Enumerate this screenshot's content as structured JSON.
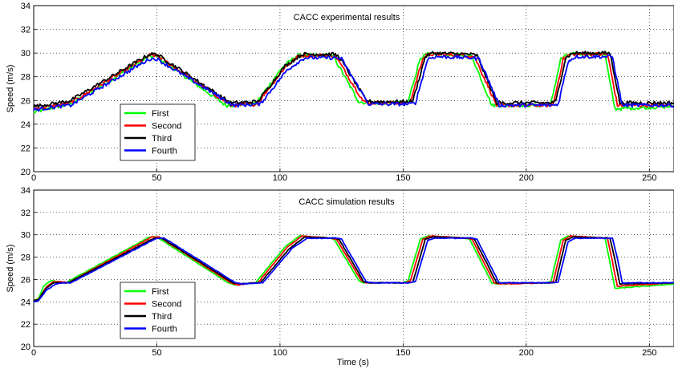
{
  "chart_data": [
    {
      "type": "line",
      "title": "CACC experimental results",
      "xlabel": "",
      "ylabel": "Speed (m/s)",
      "xlim": [
        0,
        260
      ],
      "ylim": [
        20,
        34
      ],
      "xticks": [
        0,
        50,
        100,
        150,
        200,
        250
      ],
      "yticks": [
        20,
        22,
        24,
        26,
        28,
        30,
        32,
        34
      ],
      "grid": true,
      "legend_position": "lower-left",
      "noise": 0.15,
      "series": [
        {
          "name": "First",
          "color": "#00ff00",
          "x": [
            0,
            10,
            15,
            47,
            50,
            78,
            80,
            89,
            90,
            101,
            107,
            120,
            122,
            132,
            135,
            150,
            152,
            157,
            160,
            175,
            178,
            186,
            188,
            208,
            210,
            214,
            217,
            232,
            234,
            236,
            260
          ],
          "y": [
            25.0,
            25.5,
            25.7,
            29.7,
            29.7,
            25.6,
            25.6,
            25.7,
            25.7,
            28.8,
            29.8,
            29.8,
            29.6,
            25.9,
            25.8,
            25.8,
            25.9,
            29.6,
            29.9,
            29.8,
            29.7,
            25.6,
            25.6,
            25.6,
            25.7,
            29.5,
            29.9,
            29.9,
            27.5,
            25.3,
            25.5
          ]
        },
        {
          "name": "Second",
          "color": "#ff0000",
          "x": [
            0,
            10,
            15,
            47,
            50,
            80,
            82,
            90,
            91,
            102,
            108,
            121,
            123,
            134,
            137,
            151,
            153,
            158,
            161,
            176,
            179,
            188,
            190,
            209,
            211,
            215,
            218,
            233,
            235,
            237,
            260
          ],
          "y": [
            25.3,
            25.6,
            25.8,
            29.8,
            29.8,
            25.6,
            25.6,
            25.7,
            25.8,
            28.8,
            29.8,
            29.8,
            29.6,
            25.9,
            25.8,
            25.8,
            25.9,
            29.6,
            29.9,
            29.8,
            29.7,
            25.6,
            25.6,
            25.6,
            25.7,
            29.5,
            29.9,
            29.9,
            27.8,
            25.6,
            25.6
          ]
        },
        {
          "name": "Third",
          "color": "#000000",
          "x": [
            0,
            10,
            15,
            47,
            50,
            80,
            82,
            90,
            91,
            102,
            109,
            122,
            124,
            135,
            137,
            152,
            154,
            159,
            162,
            177,
            180,
            188,
            190,
            210,
            212,
            216,
            219,
            234,
            236,
            238,
            260
          ],
          "y": [
            25.5,
            25.8,
            26.0,
            29.9,
            29.9,
            25.8,
            25.8,
            25.9,
            25.9,
            28.9,
            29.9,
            29.9,
            29.7,
            26.0,
            25.9,
            25.9,
            26.0,
            29.7,
            30.0,
            29.9,
            29.8,
            25.8,
            25.8,
            25.8,
            25.9,
            29.6,
            30.0,
            30.0,
            28.0,
            25.8,
            25.8
          ]
        },
        {
          "name": "Fourth",
          "color": "#0000ff",
          "x": [
            0,
            10,
            15,
            47,
            50,
            81,
            83,
            91,
            92,
            103,
            110,
            123,
            125,
            136,
            138,
            153,
            155,
            160,
            163,
            178,
            181,
            189,
            191,
            211,
            213,
            217,
            220,
            235,
            237,
            239,
            260
          ],
          "y": [
            25.2,
            25.5,
            25.6,
            29.5,
            29.5,
            25.6,
            25.6,
            25.7,
            25.7,
            28.6,
            29.6,
            29.6,
            29.5,
            25.7,
            25.7,
            25.7,
            25.8,
            29.5,
            29.7,
            29.6,
            29.5,
            25.6,
            25.6,
            25.6,
            25.7,
            29.3,
            29.7,
            29.7,
            27.6,
            25.6,
            25.6
          ]
        }
      ]
    },
    {
      "type": "line",
      "title": "CACC simulation results",
      "xlabel": "Time (s)",
      "ylabel": "Speed (m/s)",
      "xlim": [
        0,
        260
      ],
      "ylim": [
        20,
        34
      ],
      "xticks": [
        0,
        50,
        100,
        150,
        200,
        250
      ],
      "yticks": [
        20,
        22,
        24,
        26,
        28,
        30,
        32,
        34
      ],
      "grid": true,
      "legend_position": "lower-left",
      "noise": 0.03,
      "series": [
        {
          "name": "First",
          "color": "#00ff00",
          "x": [
            0,
            2,
            4,
            7,
            10,
            13,
            47,
            50,
            79,
            82,
            88,
            90,
            102,
            108,
            120,
            122,
            132,
            134,
            150,
            152,
            157,
            160,
            175,
            177,
            186,
            188,
            208,
            210,
            214,
            217,
            232,
            234,
            236,
            260
          ],
          "y": [
            24.1,
            24.3,
            25.4,
            25.9,
            25.8,
            25.7,
            29.8,
            29.8,
            25.7,
            25.5,
            25.7,
            25.7,
            28.9,
            29.9,
            29.7,
            29.6,
            25.9,
            25.7,
            25.7,
            25.9,
            29.6,
            29.9,
            29.7,
            29.6,
            25.7,
            25.6,
            25.7,
            25.8,
            29.5,
            29.9,
            29.7,
            27.5,
            25.2,
            25.6
          ]
        },
        {
          "name": "Second",
          "color": "#ff0000",
          "x": [
            0,
            2,
            5,
            8,
            11,
            14,
            48,
            51,
            80,
            83,
            89,
            91,
            103,
            109,
            121,
            123,
            133,
            135,
            151,
            153,
            158,
            161,
            176,
            178,
            187,
            189,
            209,
            211,
            215,
            218,
            233,
            235,
            237,
            260
          ],
          "y": [
            24.1,
            24.2,
            25.3,
            25.8,
            25.8,
            25.7,
            29.8,
            29.8,
            25.7,
            25.5,
            25.7,
            25.7,
            28.9,
            29.9,
            29.7,
            29.6,
            25.9,
            25.7,
            25.7,
            25.9,
            29.6,
            29.9,
            29.7,
            29.6,
            25.7,
            25.6,
            25.7,
            25.8,
            29.5,
            29.9,
            29.7,
            27.6,
            25.4,
            25.7
          ]
        },
        {
          "name": "Third",
          "color": "#000000",
          "x": [
            0,
            2,
            5,
            8,
            11,
            14,
            49,
            52,
            81,
            84,
            90,
            92,
            104,
            110,
            122,
            124,
            134,
            136,
            152,
            154,
            159,
            162,
            177,
            179,
            188,
            190,
            210,
            212,
            216,
            219,
            234,
            236,
            238,
            260
          ],
          "y": [
            24.1,
            24.2,
            25.2,
            25.7,
            25.7,
            25.7,
            29.7,
            29.7,
            25.7,
            25.6,
            25.7,
            25.7,
            28.8,
            29.8,
            29.7,
            29.6,
            25.8,
            25.7,
            25.7,
            25.8,
            29.6,
            29.8,
            29.7,
            29.6,
            25.7,
            25.7,
            25.7,
            25.8,
            29.5,
            29.8,
            29.7,
            27.8,
            25.6,
            25.7
          ]
        },
        {
          "name": "Fourth",
          "color": "#0000ff",
          "x": [
            0,
            2,
            5,
            9,
            12,
            15,
            50,
            53,
            82,
            85,
            91,
            93,
            105,
            111,
            123,
            125,
            135,
            137,
            153,
            155,
            160,
            163,
            178,
            180,
            189,
            191,
            211,
            213,
            217,
            220,
            235,
            237,
            239,
            260
          ],
          "y": [
            24.0,
            24.1,
            25.0,
            25.6,
            25.7,
            25.7,
            29.7,
            29.7,
            25.7,
            25.6,
            25.7,
            25.7,
            28.8,
            29.7,
            29.7,
            29.6,
            25.8,
            25.7,
            25.7,
            25.8,
            29.5,
            29.7,
            29.7,
            29.6,
            25.7,
            25.7,
            25.7,
            25.8,
            29.4,
            29.7,
            29.7,
            27.9,
            25.7,
            25.7
          ]
        }
      ]
    }
  ]
}
